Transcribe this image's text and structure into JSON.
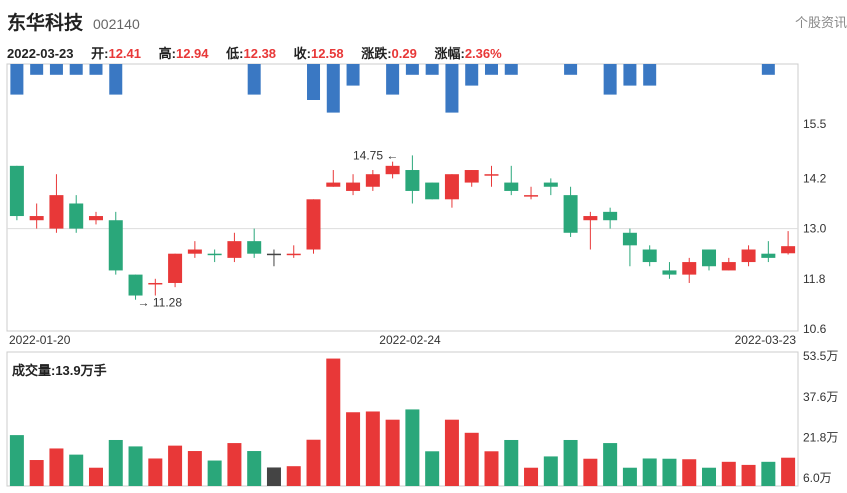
{
  "header": {
    "name": "东华科技",
    "code": "002140",
    "info_link": "个股资讯"
  },
  "quote": {
    "date": "2022-03-23",
    "open_label": "开:",
    "open": "12.41",
    "high_label": "高:",
    "high": "12.94",
    "low_label": "低:",
    "low": "12.38",
    "close_label": "收:",
    "close": "12.58",
    "change_label": "涨跌:",
    "change": "0.29",
    "pct_label": "涨幅:",
    "pct": "2.36%"
  },
  "volume_title": "成交量:13.9万手",
  "colors": {
    "up": "#e83838",
    "down": "#2aa77a",
    "neutral": "#444444",
    "bar_blue": "#3a78c3",
    "grid": "#dddddd",
    "axis": "#cccccc"
  },
  "chart_data": [
    {
      "type": "candlestick",
      "x_dates_shown": [
        "2022-01-20",
        "2022-02-24",
        "2022-03-23"
      ],
      "y_ticks": [
        "15.5",
        "14.2",
        "13.0",
        "11.8",
        "10.6"
      ],
      "ylim": [
        10.6,
        15.5
      ],
      "annotations": [
        {
          "label": "14.75",
          "type": "max"
        },
        {
          "label": "11.28",
          "type": "min"
        }
      ],
      "candles": [
        {
          "o": 13.3,
          "c": 14.5,
          "h": 14.5,
          "l": 13.2,
          "dir": "down"
        },
        {
          "o": 13.2,
          "c": 13.3,
          "h": 13.6,
          "l": 13.0,
          "dir": "up"
        },
        {
          "o": 13.0,
          "c": 13.8,
          "h": 14.3,
          "l": 12.9,
          "dir": "up"
        },
        {
          "o": 13.6,
          "c": 13.0,
          "h": 13.8,
          "l": 12.9,
          "dir": "down"
        },
        {
          "o": 13.2,
          "c": 13.3,
          "h": 13.4,
          "l": 13.1,
          "dir": "up"
        },
        {
          "o": 13.2,
          "c": 12.0,
          "h": 13.4,
          "l": 11.9,
          "dir": "down"
        },
        {
          "o": 11.9,
          "c": 11.4,
          "h": 11.9,
          "l": 11.3,
          "dir": "down"
        },
        {
          "o": 11.7,
          "c": 11.7,
          "h": 11.8,
          "l": 11.4,
          "dir": "up"
        },
        {
          "o": 11.7,
          "c": 12.4,
          "h": 12.4,
          "l": 11.6,
          "dir": "up"
        },
        {
          "o": 12.4,
          "c": 12.5,
          "h": 12.7,
          "l": 12.3,
          "dir": "up"
        },
        {
          "o": 12.4,
          "c": 12.4,
          "h": 12.5,
          "l": 12.2,
          "dir": "down"
        },
        {
          "o": 12.3,
          "c": 12.7,
          "h": 12.9,
          "l": 12.2,
          "dir": "up"
        },
        {
          "o": 12.7,
          "c": 12.4,
          "h": 13.0,
          "l": 12.3,
          "dir": "down"
        },
        {
          "o": 12.4,
          "c": 12.4,
          "h": 12.5,
          "l": 12.1,
          "dir": "neutral"
        },
        {
          "o": 12.4,
          "c": 12.4,
          "h": 12.6,
          "l": 12.3,
          "dir": "up"
        },
        {
          "o": 12.5,
          "c": 13.7,
          "h": 13.7,
          "l": 12.4,
          "dir": "up"
        },
        {
          "o": 14.0,
          "c": 14.1,
          "h": 14.4,
          "l": 14.0,
          "dir": "up"
        },
        {
          "o": 13.9,
          "c": 14.1,
          "h": 14.3,
          "l": 13.8,
          "dir": "up"
        },
        {
          "o": 14.0,
          "c": 14.3,
          "h": 14.4,
          "l": 13.9,
          "dir": "up"
        },
        {
          "o": 14.3,
          "c": 14.5,
          "h": 14.6,
          "l": 14.2,
          "dir": "up"
        },
        {
          "o": 14.4,
          "c": 13.9,
          "h": 14.75,
          "l": 13.6,
          "dir": "down"
        },
        {
          "o": 14.1,
          "c": 13.7,
          "h": 14.1,
          "l": 13.7,
          "dir": "down"
        },
        {
          "o": 13.7,
          "c": 14.3,
          "h": 14.3,
          "l": 13.5,
          "dir": "up"
        },
        {
          "o": 14.1,
          "c": 14.4,
          "h": 14.4,
          "l": 14.0,
          "dir": "up"
        },
        {
          "o": 14.3,
          "c": 14.3,
          "h": 14.5,
          "l": 14.0,
          "dir": "up"
        },
        {
          "o": 14.1,
          "c": 13.9,
          "h": 14.5,
          "l": 13.8,
          "dir": "down"
        },
        {
          "o": 13.8,
          "c": 13.8,
          "h": 14.0,
          "l": 13.7,
          "dir": "up"
        },
        {
          "o": 14.0,
          "c": 14.1,
          "h": 14.2,
          "l": 13.8,
          "dir": "down"
        },
        {
          "o": 13.8,
          "c": 12.9,
          "h": 14.0,
          "l": 12.8,
          "dir": "down"
        },
        {
          "o": 13.2,
          "c": 13.3,
          "h": 13.4,
          "l": 12.5,
          "dir": "up"
        },
        {
          "o": 13.4,
          "c": 13.2,
          "h": 13.5,
          "l": 13.0,
          "dir": "down"
        },
        {
          "o": 12.9,
          "c": 12.6,
          "h": 13.0,
          "l": 12.1,
          "dir": "down"
        },
        {
          "o": 12.5,
          "c": 12.2,
          "h": 12.6,
          "l": 12.1,
          "dir": "down"
        },
        {
          "o": 12.0,
          "c": 11.9,
          "h": 12.2,
          "l": 11.8,
          "dir": "down"
        },
        {
          "o": 11.9,
          "c": 12.2,
          "h": 12.3,
          "l": 11.7,
          "dir": "up"
        },
        {
          "o": 12.5,
          "c": 12.1,
          "h": 12.5,
          "l": 12.0,
          "dir": "down"
        },
        {
          "o": 12.0,
          "c": 12.2,
          "h": 12.3,
          "l": 12.0,
          "dir": "up"
        },
        {
          "o": 12.2,
          "c": 12.5,
          "h": 12.6,
          "l": 12.1,
          "dir": "up"
        },
        {
          "o": 12.4,
          "c": 12.3,
          "h": 12.7,
          "l": 12.2,
          "dir": "down"
        },
        {
          "o": 12.41,
          "c": 12.58,
          "h": 12.94,
          "l": 12.38,
          "dir": "up"
        }
      ]
    },
    {
      "type": "bar",
      "title": "成交量:13.9万手",
      "y_ticks": [
        "53.5万",
        "37.6万",
        "21.8万",
        "6.0万"
      ],
      "ylim": [
        6.0,
        53.5
      ],
      "unit": "万手",
      "values": [
        22.7,
        13.0,
        17.5,
        15.1,
        10.0,
        20.8,
        18.3,
        13.6,
        18.6,
        16.5,
        12.8,
        19.6,
        16.5,
        10.1,
        10.6,
        20.9,
        52.5,
        31.6,
        31.9,
        28.7,
        32.7,
        16.4,
        28.7,
        23.6,
        16.4,
        20.8,
        10.0,
        14.4,
        20.8,
        13.5,
        19.6,
        10.0,
        13.6,
        13.5,
        13.3,
        10.0,
        12.3,
        11.1,
        12.3,
        13.9
      ],
      "dirs": [
        "down",
        "up",
        "up",
        "down",
        "up",
        "down",
        "down",
        "up",
        "up",
        "up",
        "down",
        "up",
        "down",
        "neutral",
        "up",
        "up",
        "up",
        "up",
        "up",
        "up",
        "down",
        "down",
        "up",
        "up",
        "up",
        "down",
        "up",
        "down",
        "down",
        "up",
        "down",
        "down",
        "down",
        "down",
        "up",
        "down",
        "up",
        "up",
        "down",
        "up"
      ]
    },
    {
      "type": "bar",
      "name": "top-indicator",
      "values": [
        0.85,
        0.3,
        0.3,
        0.3,
        0.3,
        0.85,
        0.0,
        0.0,
        0.0,
        0.0,
        0.0,
        0.0,
        0.85,
        0.0,
        0.0,
        1.0,
        1.35,
        0.6,
        0.0,
        0.85,
        0.3,
        0.3,
        1.35,
        0.6,
        0.3,
        0.3,
        0.0,
        0.0,
        0.3,
        0.0,
        0.85,
        0.6,
        0.6,
        0.0,
        0.0,
        0.0,
        0.0,
        0.0,
        0.3,
        0.0
      ]
    }
  ]
}
